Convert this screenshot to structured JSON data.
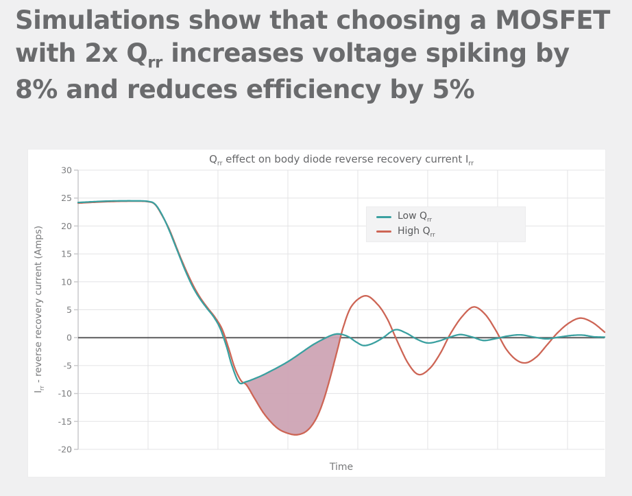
{
  "heading": {
    "segments": [
      {
        "text": "Simulations show that choosing a MOSFET with 2x Q"
      },
      {
        "text": "rr",
        "sub": true
      },
      {
        "text": " increases voltage spiking by 8% and reduces efficiency by 5%"
      }
    ]
  },
  "chart": {
    "title_segments": [
      {
        "text": "Q"
      },
      {
        "text": "rr",
        "sub": true
      },
      {
        "text": " effect on body diode reverse recovery current I"
      },
      {
        "text": "rr",
        "sub": true
      }
    ],
    "ylabel_segments": [
      {
        "text": "I"
      },
      {
        "text": "rr",
        "sub": true
      },
      {
        "text": " - reverse recovery current (Amps)"
      }
    ],
    "xlabel": "Time",
    "legend_items": [
      {
        "segments": [
          {
            "text": "Low Q"
          },
          {
            "text": "rr",
            "sub": true
          }
        ]
      },
      {
        "segments": [
          {
            "text": "High Q"
          },
          {
            "text": "rr",
            "sub": true
          }
        ]
      }
    ]
  },
  "chart_data": {
    "type": "line",
    "title": "Qrr effect on body diode reverse recovery current Irr",
    "xlabel": "Time",
    "ylabel": "Irr - reverse recovery current (Amps)",
    "x_axis": {
      "min": 0,
      "max": 7.53,
      "gridline_step": 1,
      "tick_labels_shown": false
    },
    "y_axis": {
      "min": -20,
      "max": 30,
      "ticks": [
        30,
        25,
        20,
        15,
        10,
        5,
        0,
        -5,
        -10,
        -15,
        -20
      ]
    },
    "grid_color": "#e3e3e5",
    "axis_color": "#c9c9cb",
    "zero_line_color": "#5b5b5d",
    "series": [
      {
        "name": "Low Qrr",
        "color": "#3aa0a0",
        "points": [
          [
            0,
            24.2
          ],
          [
            0.4,
            24.45
          ],
          [
            0.8,
            24.5
          ],
          [
            1.0,
            24.4
          ],
          [
            1.1,
            23.9
          ],
          [
            1.2,
            22.0
          ],
          [
            1.3,
            19.3
          ],
          [
            1.44,
            14.9
          ],
          [
            1.54,
            11.8
          ],
          [
            1.64,
            9.1
          ],
          [
            1.74,
            7.0
          ],
          [
            1.84,
            5.3
          ],
          [
            1.94,
            3.7
          ],
          [
            2.03,
            1.7
          ],
          [
            2.12,
            -1.5
          ],
          [
            2.2,
            -5.0
          ],
          [
            2.3,
            -8.0
          ],
          [
            2.4,
            -7.9
          ],
          [
            2.55,
            -7.2
          ],
          [
            2.69,
            -6.4
          ],
          [
            3.0,
            -4.3
          ],
          [
            3.33,
            -1.5
          ],
          [
            3.5,
            -0.3
          ],
          [
            3.64,
            0.5
          ],
          [
            3.74,
            0.65
          ],
          [
            3.86,
            0.2
          ],
          [
            3.98,
            -0.8
          ],
          [
            4.08,
            -1.4
          ],
          [
            4.2,
            -1.1
          ],
          [
            4.35,
            -0.1
          ],
          [
            4.53,
            1.4
          ],
          [
            4.68,
            0.9
          ],
          [
            4.85,
            -0.3
          ],
          [
            5.0,
            -0.95
          ],
          [
            5.16,
            -0.6
          ],
          [
            5.32,
            0.1
          ],
          [
            5.47,
            0.55
          ],
          [
            5.64,
            0.1
          ],
          [
            5.8,
            -0.5
          ],
          [
            5.98,
            -0.15
          ],
          [
            6.15,
            0.3
          ],
          [
            6.33,
            0.5
          ],
          [
            6.52,
            0.1
          ],
          [
            6.7,
            -0.2
          ],
          [
            6.88,
            0.1
          ],
          [
            7.06,
            0.4
          ],
          [
            7.22,
            0.45
          ],
          [
            7.38,
            0.15
          ],
          [
            7.53,
            0.1
          ]
        ]
      },
      {
        "name": "High Qrr",
        "color": "#cd6555",
        "points": [
          [
            0,
            24.1
          ],
          [
            0.4,
            24.35
          ],
          [
            0.8,
            24.45
          ],
          [
            1.0,
            24.35
          ],
          [
            1.1,
            23.85
          ],
          [
            1.2,
            21.9
          ],
          [
            1.31,
            19.2
          ],
          [
            1.45,
            14.8
          ],
          [
            1.56,
            11.6
          ],
          [
            1.66,
            9.0
          ],
          [
            1.76,
            6.9
          ],
          [
            1.86,
            5.2
          ],
          [
            1.96,
            3.6
          ],
          [
            2.06,
            1.5
          ],
          [
            2.15,
            -1.8
          ],
          [
            2.24,
            -5.4
          ],
          [
            2.33,
            -7.7
          ],
          [
            2.41,
            -8.5
          ],
          [
            2.52,
            -10.8
          ],
          [
            2.67,
            -13.8
          ],
          [
            2.85,
            -16.2
          ],
          [
            3.02,
            -17.2
          ],
          [
            3.15,
            -17.35
          ],
          [
            3.28,
            -16.6
          ],
          [
            3.4,
            -14.6
          ],
          [
            3.5,
            -11.6
          ],
          [
            3.6,
            -7.4
          ],
          [
            3.7,
            -2.6
          ],
          [
            3.8,
            2.2
          ],
          [
            3.92,
            5.8
          ],
          [
            4.11,
            7.5
          ],
          [
            4.28,
            6.0
          ],
          [
            4.42,
            3.4
          ],
          [
            4.56,
            -0.5
          ],
          [
            4.72,
            -4.6
          ],
          [
            4.87,
            -6.6
          ],
          [
            5.03,
            -5.5
          ],
          [
            5.18,
            -2.8
          ],
          [
            5.33,
            0.8
          ],
          [
            5.5,
            3.9
          ],
          [
            5.66,
            5.5
          ],
          [
            5.82,
            4.2
          ],
          [
            5.97,
            1.4
          ],
          [
            6.12,
            -2.0
          ],
          [
            6.27,
            -4.0
          ],
          [
            6.41,
            -4.5
          ],
          [
            6.56,
            -3.4
          ],
          [
            6.7,
            -1.4
          ],
          [
            6.86,
            0.9
          ],
          [
            7.03,
            2.7
          ],
          [
            7.19,
            3.5
          ],
          [
            7.36,
            2.7
          ],
          [
            7.53,
            1.0
          ]
        ]
      }
    ],
    "fill_between": {
      "upper_series": "Low Qrr",
      "lower_series": "High Qrr",
      "from_x": 2.38,
      "to_x": 3.76,
      "color": "#cda4b4"
    }
  }
}
